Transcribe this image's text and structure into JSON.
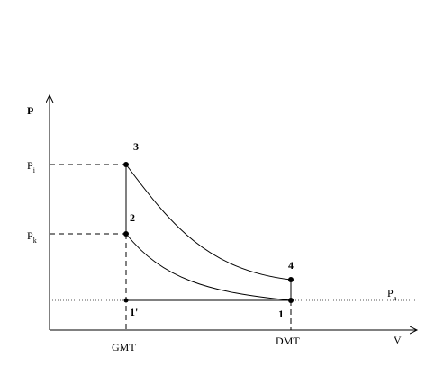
{
  "axes": {
    "y_label": "P",
    "x_label": "V"
  },
  "pressure_levels": [
    {
      "symbol": "P",
      "subscript": "i"
    },
    {
      "symbol": "P",
      "subscript": "k"
    },
    {
      "symbol": "P",
      "subscript": "a"
    }
  ],
  "volume_levels": [
    "GMT",
    "DMT"
  ],
  "points": [
    "1",
    "1'",
    "2",
    "3",
    "4"
  ]
}
